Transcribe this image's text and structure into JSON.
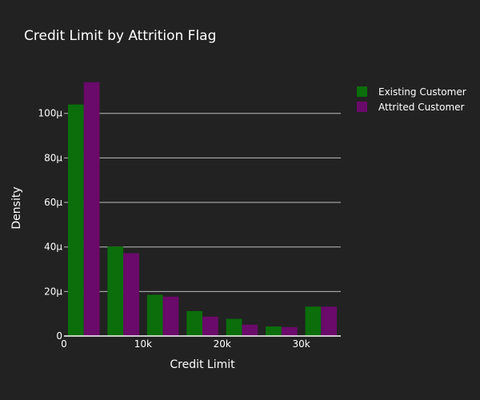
{
  "chart_data": {
    "type": "bar",
    "title": "Credit Limit by Attrition Flag",
    "xlabel": "Credit Limit",
    "ylabel": "Density",
    "bin_width": 5000,
    "x": [
      0,
      5000,
      10000,
      15000,
      20000,
      25000,
      30000
    ],
    "xlim": [
      0,
      35000
    ],
    "ylim": [
      0,
      0.000115
    ],
    "x_ticks": [
      0,
      10000,
      20000,
      30000
    ],
    "x_tick_labels": [
      "0",
      "10k",
      "20k",
      "30k"
    ],
    "y_ticks": [
      0,
      2e-05,
      4e-05,
      6e-05,
      8e-05,
      0.0001
    ],
    "y_tick_labels": [
      "0",
      "20μ",
      "40μ",
      "60μ",
      "80μ",
      "100μ"
    ],
    "grid": true,
    "legend_position": "top-right",
    "series": [
      {
        "name": "Existing Customer",
        "color": "#0b6e0b",
        "values": [
          0.000104,
          4.02e-05,
          1.85e-05,
          1.12e-05,
          7.7e-06,
          4.3e-06,
          1.32e-05
        ]
      },
      {
        "name": "Attrited Customer",
        "color": "#6a0a6a",
        "values": [
          0.000114,
          3.72e-05,
          1.77e-05,
          8.7e-06,
          5.1e-06,
          4e-06,
          1.32e-05
        ]
      }
    ]
  }
}
